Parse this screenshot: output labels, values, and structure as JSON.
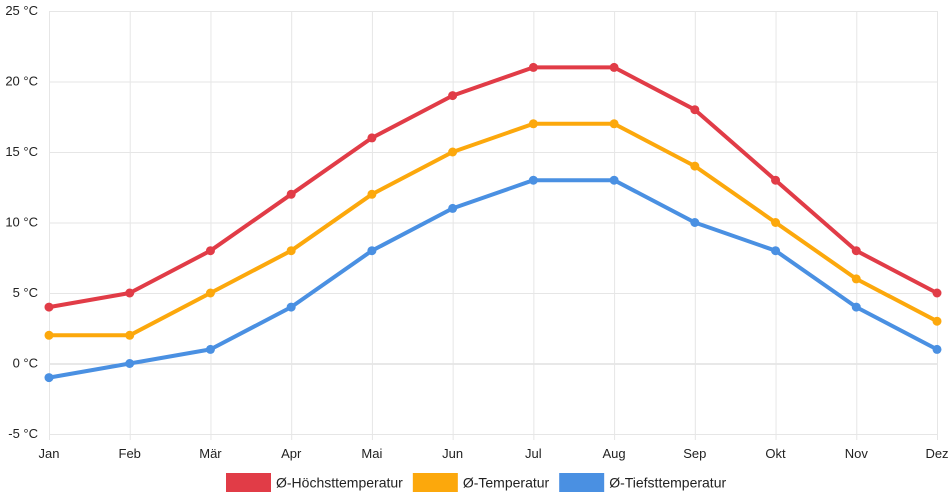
{
  "chart_data": {
    "type": "line",
    "title": "",
    "xlabel": "",
    "ylabel": "",
    "categories": [
      "Jan",
      "Feb",
      "Mär",
      "Apr",
      "Mai",
      "Jun",
      "Jul",
      "Aug",
      "Sep",
      "Okt",
      "Nov",
      "Dez"
    ],
    "ylim": [
      -5,
      25
    ],
    "yticks": [
      -5,
      0,
      5,
      10,
      15,
      20,
      25
    ],
    "y_tick_suffix": " °C",
    "grid": true,
    "legend_position": "bottom",
    "series": [
      {
        "name": "Ø-Höchsttemperatur",
        "color": "#e13c47",
        "values": [
          4,
          5,
          8,
          12,
          16,
          19,
          21,
          21,
          18,
          13,
          8,
          5
        ]
      },
      {
        "name": "Ø-Temperatur",
        "color": "#fca80c",
        "values": [
          2,
          2,
          5,
          8,
          12,
          15,
          17,
          17,
          14,
          10,
          6,
          3
        ]
      },
      {
        "name": "Ø-Tiefsttemperatur",
        "color": "#4a90e2",
        "values": [
          -1,
          0,
          1,
          4,
          8,
          11,
          13,
          13,
          10,
          8,
          4,
          1
        ]
      }
    ]
  }
}
